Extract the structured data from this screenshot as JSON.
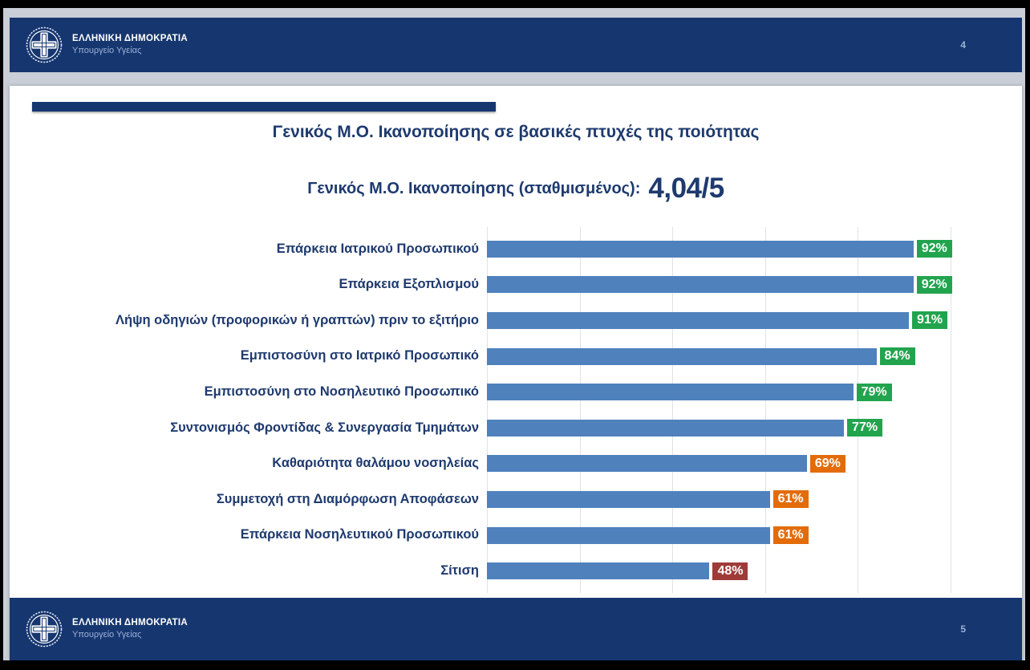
{
  "banner": {
    "org_name": "ΕΛΛΗΝΙΚΗ ΔΗΜΟΚΡΑΤΙΑ",
    "org_department": "Υπουργείο Υγείας",
    "top_page_number": "4",
    "bottom_page_number": "5"
  },
  "slide": {
    "title": "Γενικός Μ.Ο. Ικανοποίησης σε βασικές πτυχές της ποιότητας",
    "subtitle_label": "Γενικός Μ.Ο. Ικανοποίησης (σταθμισμένος):",
    "subtitle_value": "4,04/5"
  },
  "chart_data": {
    "type": "bar",
    "orientation": "horizontal",
    "title": "Γενικός Μ.Ο. Ικανοποίησης σε βασικές πτυχές της ποιότητας",
    "categories": [
      "Επάρκεια Ιατρικού Προσωπικού",
      "Επάρκεια Εξοπλισμού",
      "Λήψη οδηγιών (προφορικών ή γραπτών) πριν το εξιτήριο",
      "Εμπιστοσύνη στο Ιατρικό Προσωπικό",
      "Εμπιστοσύνη στο Νοσηλευτικό Προσωπικό",
      "Συντονισμός Φροντίδας & Συνεργασία Τμημάτων",
      "Καθαριότητα θαλάμου νοσηλείας",
      "Συμμετοχή στη Διαμόρφωση Αποφάσεων",
      "Επάρκεια Νοσηλευτικού Προσωπικού",
      "Σίτιση"
    ],
    "values": [
      92,
      92,
      91,
      84,
      79,
      77,
      69,
      61,
      61,
      48
    ],
    "value_labels": [
      "92%",
      "92%",
      "91%",
      "84%",
      "79%",
      "77%",
      "69%",
      "61%",
      "61%",
      "48%"
    ],
    "value_label_colors": [
      "#22a44e",
      "#22a44e",
      "#22a44e",
      "#22a44e",
      "#22a44e",
      "#22a44e",
      "#e36c0a",
      "#e36c0a",
      "#e36c0a",
      "#9e3b39"
    ],
    "bar_color": "#4f81bd",
    "xlim": [
      0,
      100
    ],
    "gridline_step_percent": 20,
    "grid": true,
    "legend": false,
    "xlabel": "",
    "ylabel": ""
  },
  "colors": {
    "band_navy": "#16366f",
    "title_navy": "#1e3a6e",
    "bar_blue": "#4f81bd",
    "badge_green": "#22a44e",
    "badge_orange": "#e36c0a",
    "badge_dark_red": "#9e3b39",
    "grid_line": "#dfe2e9",
    "viewer_background": "#c9ced7",
    "band_secondary_text": "#9db1d9"
  }
}
